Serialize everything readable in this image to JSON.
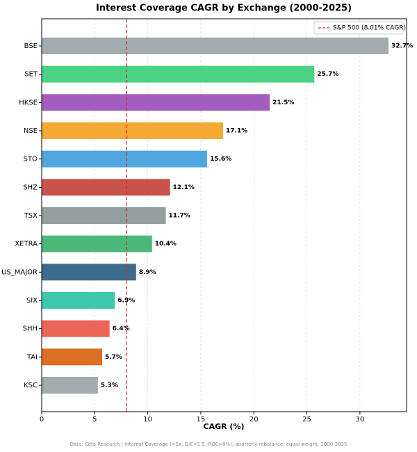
{
  "chart_data": {
    "type": "barh",
    "title": "Interest Coverage CAGR by Exchange (2000-2025)",
    "x_label": "CAGR (%)",
    "footnote": "Data: Ceta Research | Interest Coverage (>5x, D/E<1.5, ROE>8%), quarterly rebalance, equal weight, 2000-2025",
    "categories": [
      "BSE",
      "SET",
      "HKSE",
      "NSE",
      "STO",
      "SHZ",
      "TSX",
      "XETRA",
      "US_MAJOR",
      "SIX",
      "SHH",
      "TAI",
      "KSC"
    ],
    "values": [
      32.7,
      25.7,
      21.5,
      17.1,
      15.6,
      12.1,
      11.7,
      10.4,
      8.9,
      6.9,
      6.4,
      5.7,
      5.3
    ],
    "value_labels": [
      "32.7%",
      "25.7%",
      "21.5%",
      "17.1%",
      "15.6%",
      "12.1%",
      "11.7%",
      "10.4%",
      "8.9%",
      "6.9%",
      "6.4%",
      "5.7%",
      "5.3%"
    ],
    "colors": [
      "#a0acad",
      "#4cd283",
      "#a35dbf",
      "#f4a935",
      "#52a6e0",
      "#c8534a",
      "#939e9f",
      "#4ab978",
      "#3d6b8c",
      "#3dc9ad",
      "#ec6558",
      "#db6f25",
      "#a0acad"
    ],
    "reference_line": {
      "value": 8.01,
      "label": "S&P 500 (8.01% CAGR)",
      "color": "#d62728"
    },
    "xlim": [
      0,
      34.4
    ],
    "xticks": [
      0,
      5,
      10,
      15,
      20,
      25,
      30
    ],
    "grid": true,
    "legend": "upper right"
  }
}
